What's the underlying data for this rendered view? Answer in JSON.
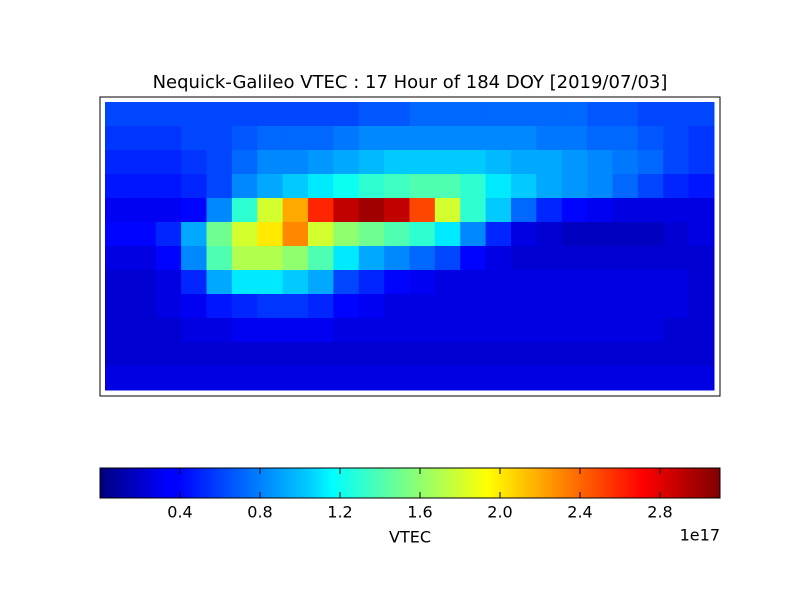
{
  "chart_data": {
    "type": "heatmap",
    "title": "Nequick-Galileo VTEC : 17 Hour of 184 DOY [2019/07/03]",
    "colorbar_label": "VTEC",
    "colorbar_offset": "1e17",
    "clim": [
      0,
      3.1
    ],
    "cticks": [
      0.4,
      0.8,
      1.2,
      1.6,
      {
        "value": 2,
        "label": "2.0"
      },
      2.4,
      2.8
    ],
    "values": [
      [
        0.6,
        0.6,
        0.6,
        0.6,
        0.6,
        0.6,
        0.6,
        0.6,
        0.6,
        0.6,
        0.65,
        0.65,
        0.7,
        0.7,
        0.7,
        0.7,
        0.7,
        0.7,
        0.7,
        0.65,
        0.65,
        0.6,
        0.6,
        0.6
      ],
      [
        0.55,
        0.55,
        0.55,
        0.6,
        0.6,
        0.65,
        0.7,
        0.7,
        0.7,
        0.75,
        0.8,
        0.8,
        0.8,
        0.8,
        0.8,
        0.8,
        0.8,
        0.75,
        0.75,
        0.7,
        0.7,
        0.65,
        0.6,
        0.55
      ],
      [
        0.5,
        0.5,
        0.5,
        0.55,
        0.6,
        0.7,
        0.8,
        0.8,
        0.85,
        0.9,
        0.95,
        1.0,
        1.0,
        1.0,
        1.0,
        0.95,
        0.9,
        0.9,
        0.85,
        0.8,
        0.75,
        0.7,
        0.6,
        0.55
      ],
      [
        0.45,
        0.45,
        0.45,
        0.5,
        0.6,
        0.8,
        0.9,
        1.0,
        1.1,
        1.2,
        1.3,
        1.35,
        1.4,
        1.4,
        1.3,
        1.1,
        1.0,
        0.9,
        0.85,
        0.8,
        0.7,
        0.6,
        0.5,
        0.45
      ],
      [
        0.35,
        0.35,
        0.35,
        0.4,
        0.8,
        1.3,
        1.8,
        2.2,
        2.6,
        2.9,
        3.0,
        2.9,
        2.5,
        1.8,
        1.3,
        1.0,
        0.7,
        0.5,
        0.4,
        0.35,
        0.3,
        0.3,
        0.3,
        0.3
      ],
      [
        0.4,
        0.4,
        0.5,
        0.9,
        1.5,
        1.8,
        2.0,
        2.3,
        1.8,
        1.6,
        1.5,
        1.4,
        1.3,
        1.1,
        0.8,
        0.5,
        0.3,
        0.25,
        0.2,
        0.2,
        0.2,
        0.2,
        0.25,
        0.3
      ],
      [
        0.3,
        0.3,
        0.4,
        0.8,
        1.4,
        1.7,
        1.7,
        1.6,
        1.4,
        1.1,
        0.9,
        0.8,
        0.7,
        0.6,
        0.4,
        0.3,
        0.25,
        0.25,
        0.25,
        0.25,
        0.25,
        0.25,
        0.25,
        0.25
      ],
      [
        0.25,
        0.25,
        0.3,
        0.5,
        0.9,
        1.1,
        1.1,
        1.0,
        0.9,
        0.6,
        0.5,
        0.4,
        0.35,
        0.3,
        0.3,
        0.3,
        0.3,
        0.3,
        0.3,
        0.3,
        0.3,
        0.3,
        0.3,
        0.25
      ],
      [
        0.25,
        0.25,
        0.3,
        0.35,
        0.45,
        0.5,
        0.55,
        0.55,
        0.5,
        0.4,
        0.35,
        0.3,
        0.3,
        0.3,
        0.3,
        0.3,
        0.3,
        0.3,
        0.3,
        0.3,
        0.3,
        0.3,
        0.3,
        0.25
      ],
      [
        0.25,
        0.25,
        0.25,
        0.3,
        0.3,
        0.35,
        0.35,
        0.35,
        0.35,
        0.3,
        0.3,
        0.3,
        0.3,
        0.3,
        0.3,
        0.3,
        0.3,
        0.3,
        0.3,
        0.3,
        0.3,
        0.3,
        0.25,
        0.25
      ],
      [
        0.25,
        0.25,
        0.25,
        0.25,
        0.25,
        0.25,
        0.25,
        0.25,
        0.25,
        0.25,
        0.25,
        0.25,
        0.25,
        0.25,
        0.25,
        0.25,
        0.25,
        0.25,
        0.25,
        0.25,
        0.25,
        0.25,
        0.25,
        0.25
      ],
      [
        0.3,
        0.3,
        0.3,
        0.3,
        0.3,
        0.3,
        0.3,
        0.3,
        0.3,
        0.3,
        0.3,
        0.3,
        0.3,
        0.3,
        0.3,
        0.3,
        0.3,
        0.3,
        0.3,
        0.3,
        0.3,
        0.3,
        0.3,
        0.3
      ]
    ]
  }
}
